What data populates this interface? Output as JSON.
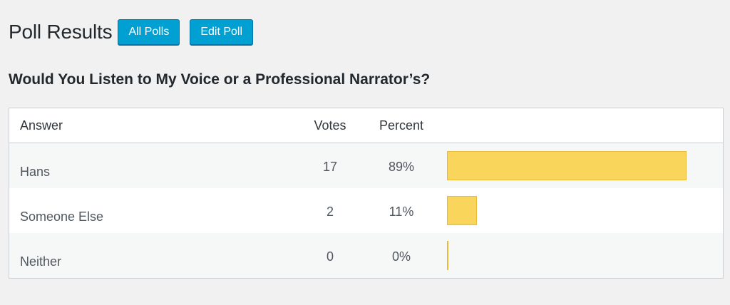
{
  "header": {
    "title": "Poll Results",
    "buttons": {
      "all_polls": "All Polls",
      "edit_poll": "Edit Poll"
    }
  },
  "poll": {
    "question": "Would You Listen to My Voice or a Professional Narrator’s?",
    "columns": {
      "answer": "Answer",
      "votes": "Votes",
      "percent": "Percent"
    },
    "rows": [
      {
        "answer": "Hans",
        "votes": "17",
        "percent": "89%",
        "fraction": 0.89
      },
      {
        "answer": "Someone Else",
        "votes": "2",
        "percent": "11%",
        "fraction": 0.11
      },
      {
        "answer": "Neither",
        "votes": "0",
        "percent": "0%",
        "fraction": 0
      }
    ]
  },
  "colors": {
    "primary_button": "#00a0d2",
    "bar_fill": "#fad55c",
    "bar_border": "#e8bb3a"
  }
}
